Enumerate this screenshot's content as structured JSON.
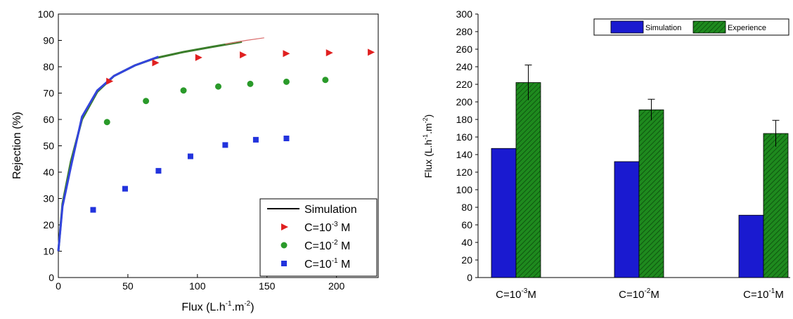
{
  "chart_data": [
    {
      "type": "scatter",
      "xlabel_main": "Flux (L.h",
      "xlabel_sup1": "-1",
      "xlabel_mid": ".m",
      "xlabel_sup2": "-2",
      "xlabel_end": ")",
      "ylabel": "Rejection (%)",
      "xlim": [
        0,
        230
      ],
      "ylim": [
        0,
        100
      ],
      "x_ticks": [
        0,
        50,
        100,
        150,
        200
      ],
      "y_ticks": [
        0,
        10,
        20,
        30,
        40,
        50,
        60,
        70,
        80,
        90,
        100
      ],
      "grid": false,
      "legend_position": "bottom-right",
      "legend": [
        {
          "prefix": "Simulation",
          "sup": "",
          "suffix": ""
        },
        {
          "prefix": "C=10",
          "sup": "-3",
          "suffix": " M"
        },
        {
          "prefix": "C=10",
          "sup": "-2",
          "suffix": " M"
        },
        {
          "prefix": "C=10",
          "sup": "-1",
          "suffix": " M"
        }
      ],
      "simulation_curves": [
        {
          "color": "#3a7d2a",
          "x": [
            0,
            3,
            9,
            17,
            28,
            40,
            55,
            70,
            90,
            110,
            132
          ],
          "y": [
            10,
            28,
            44,
            60,
            70.5,
            76.5,
            80.5,
            83.3,
            85.6,
            87.5,
            89.5
          ]
        },
        {
          "color": "#d96a6a",
          "x": [
            120,
            135,
            148
          ],
          "y": [
            88.6,
            90,
            91
          ]
        },
        {
          "color": "#3344dd",
          "x": [
            0,
            3,
            9,
            17,
            28,
            40,
            55,
            72
          ],
          "y": [
            10,
            27,
            42,
            61,
            71,
            76.5,
            80.5,
            83.8
          ]
        }
      ],
      "series": [
        {
          "color": "#e02020",
          "marker": "triangle-right",
          "x": [
            37,
            70,
            101,
            133,
            164,
            195,
            225
          ],
          "y": [
            74.5,
            81.5,
            83.5,
            84.5,
            85,
            85.3,
            85.5
          ]
        },
        {
          "color": "#2a9a2a",
          "marker": "circle",
          "x": [
            35,
            63,
            90,
            115,
            138,
            164,
            192
          ],
          "y": [
            59,
            67,
            71,
            72.5,
            73.5,
            74.3,
            75
          ]
        },
        {
          "color": "#2233dd",
          "marker": "square",
          "x": [
            25,
            48,
            72,
            95,
            120,
            142,
            164
          ],
          "y": [
            25.7,
            33.7,
            40.5,
            46,
            50.3,
            52.3,
            52.8
          ]
        }
      ]
    },
    {
      "type": "bar",
      "ylabel_main": "Flux (L.h",
      "ylabel_sup1": "-1",
      "ylabel_mid": ".m",
      "ylabel_sup2": "-2",
      "ylabel_end": ")",
      "ylim": [
        0,
        300
      ],
      "y_ticks": [
        0,
        20,
        40,
        60,
        80,
        100,
        120,
        140,
        160,
        180,
        200,
        220,
        240,
        260,
        280,
        300
      ],
      "grid": false,
      "legend_position": "top-right",
      "categories": [
        {
          "prefix": "C=10",
          "sup": "-3",
          "suffix": "M"
        },
        {
          "prefix": "C=10",
          "sup": "-2",
          "suffix": "M"
        },
        {
          "prefix": "C=10",
          "sup": "-1",
          "suffix": "M"
        }
      ],
      "series": [
        {
          "name": "Simulation",
          "color": "#1a1ad0",
          "values": [
            147,
            132,
            71
          ]
        },
        {
          "name": "Experience",
          "color": "#1e8a1e",
          "hatched": true,
          "values": [
            222,
            191,
            164
          ],
          "error": [
            20,
            12,
            15
          ]
        }
      ]
    }
  ]
}
